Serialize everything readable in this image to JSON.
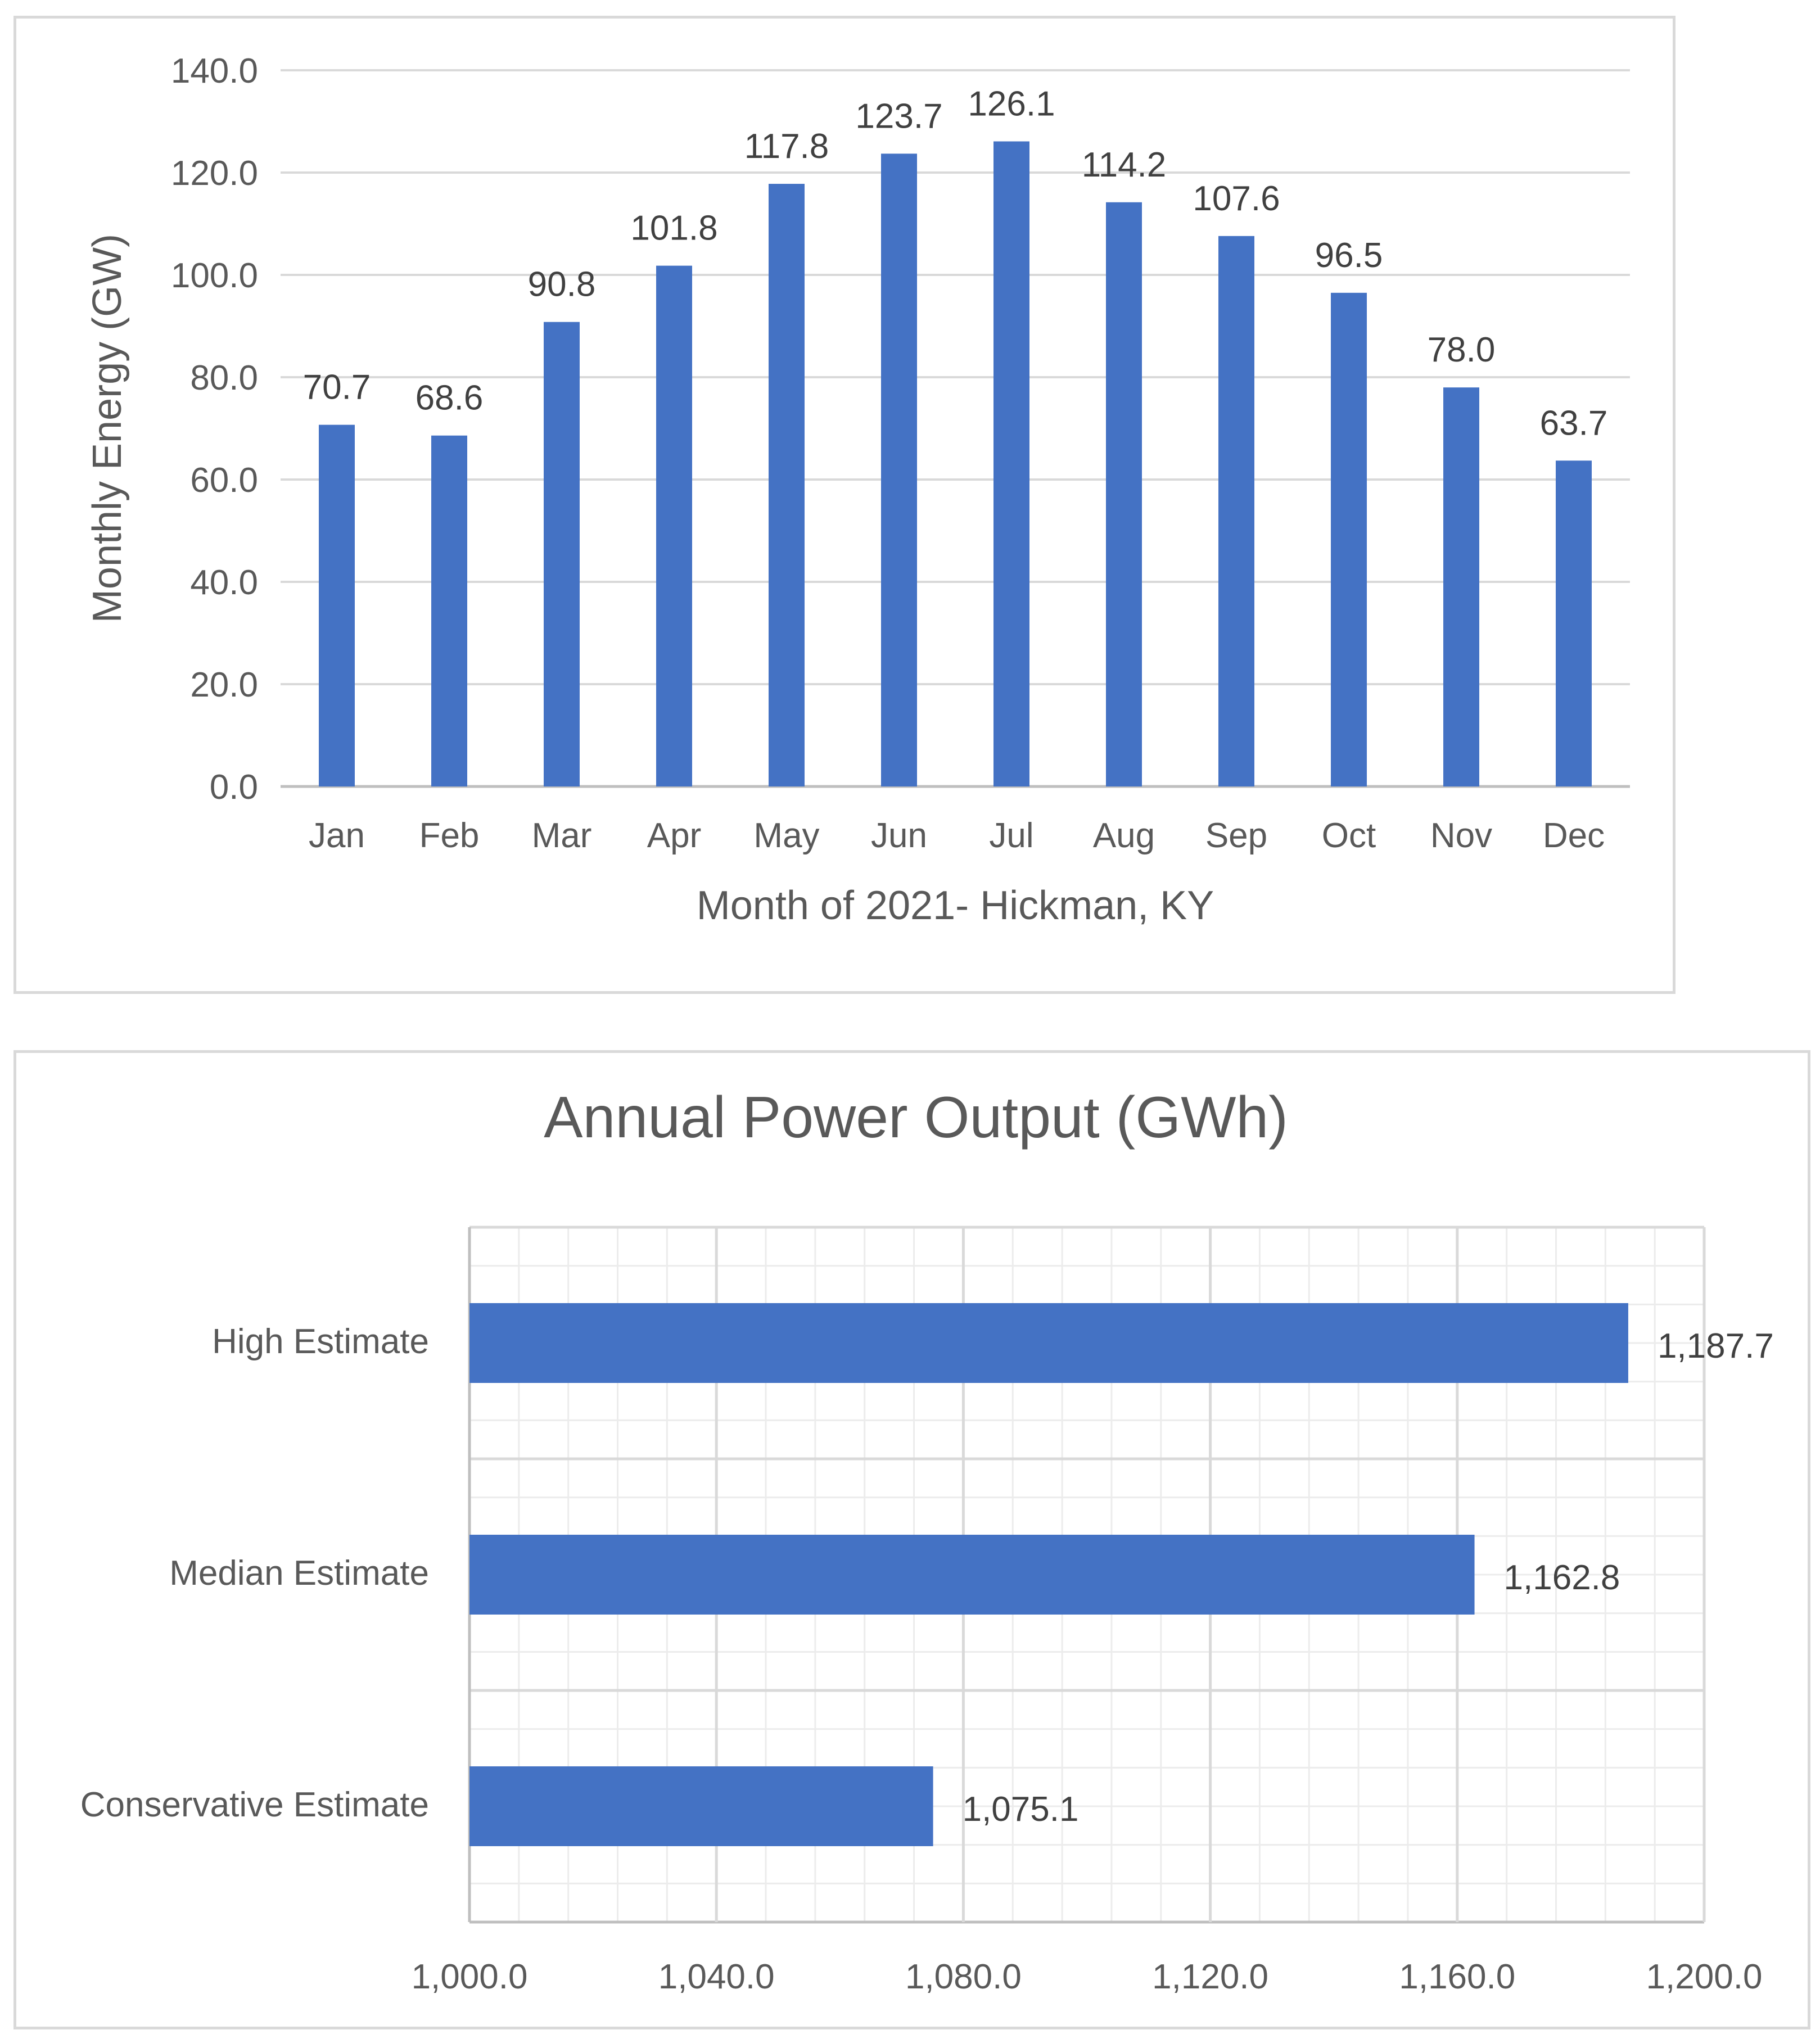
{
  "chart_data": [
    {
      "type": "bar",
      "title": "",
      "xlabel": "Month of 2021- Hickman, KY",
      "ylabel": "Monthly Energy (GW)",
      "categories": [
        "Jan",
        "Feb",
        "Mar",
        "Apr",
        "May",
        "Jun",
        "Jul",
        "Aug",
        "Sep",
        "Oct",
        "Nov",
        "Dec"
      ],
      "values": [
        70.7,
        68.6,
        90.8,
        101.8,
        117.8,
        123.7,
        126.1,
        114.2,
        107.6,
        96.5,
        78.0,
        63.7
      ],
      "value_labels": [
        "70.7",
        "68.6",
        "90.8",
        "101.8",
        "117.8",
        "123.7",
        "126.1",
        "114.2",
        "107.6",
        "96.5",
        "78.0",
        "63.7"
      ],
      "ylim": [
        0,
        140
      ],
      "yticks": [
        "0.0",
        "20.0",
        "40.0",
        "60.0",
        "80.0",
        "100.0",
        "120.0",
        "140.0"
      ],
      "grid": true,
      "legend": "none",
      "bar_color": "#4472c4"
    },
    {
      "type": "bar",
      "orientation": "horizontal",
      "title": "Annual Power Output (GWh)",
      "xlabel": "",
      "ylabel": "",
      "categories": [
        "High Estimate",
        "Median Estimate",
        "Conservative Estimate"
      ],
      "values": [
        1187.7,
        1162.8,
        1075.1
      ],
      "value_labels": [
        "1,187.7",
        "1,162.8",
        "1,075.1"
      ],
      "xlim": [
        1000,
        1200
      ],
      "xticks": [
        "1,000.0",
        "1,040.0",
        "1,080.0",
        "1,120.0",
        "1,160.0",
        "1,200.0"
      ],
      "grid": true,
      "legend": "none",
      "bar_color": "#4472c4"
    }
  ]
}
